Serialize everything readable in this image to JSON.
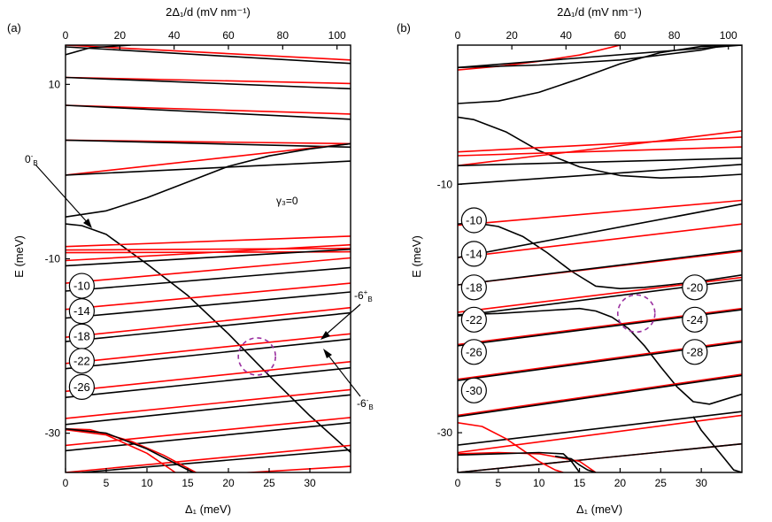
{
  "figure": {
    "panels": [
      {
        "id": "a",
        "panel_label": "(a)",
        "top_axis_label": "2Δ₁/d (mV nm⁻¹)",
        "bottom_axis_label": "Δ₁ (meV)",
        "left_axis_label": "E (meV)",
        "annotation": "γ₃=0"
      },
      {
        "id": "b",
        "panel_label": "(b)",
        "top_axis_label": "2Δ₁/d (mV nm⁻¹)",
        "bottom_axis_label": "Δ₁ (meV)",
        "left_axis_label": "E (meV)",
        "annotation": ""
      }
    ]
  },
  "chart_data": [
    {
      "type": "line",
      "panel": "(a)",
      "xlabel": "Δ₁ (meV)",
      "ylabel": "E (meV)",
      "x2label": "2Δ₁/d (mV nm⁻¹)",
      "xlim": [
        0,
        35
      ],
      "ylim": [
        -34.5,
        14.5
      ],
      "x2lim": [
        0,
        105
      ],
      "xticks": [
        0,
        5,
        10,
        15,
        20,
        25,
        30
      ],
      "x2ticks": [
        0,
        20,
        40,
        60,
        80,
        100
      ],
      "yticks": [
        10,
        -10,
        -30
      ],
      "colors": {
        "black_series": "#000000",
        "red_series": "#ff0000",
        "highlight": "#9b30a0"
      },
      "series": [
        {
          "color": "red",
          "x": [
            0,
            35
          ],
          "y": [
            14.5,
            12.8
          ]
        },
        {
          "color": "black",
          "x": [
            0,
            3,
            8
          ],
          "y": [
            13.4,
            14.2,
            14.5
          ]
        },
        {
          "color": "black",
          "x": [
            0,
            35
          ],
          "y": [
            14.3,
            12.4
          ]
        },
        {
          "color": "red",
          "x": [
            0,
            35
          ],
          "y": [
            10.8,
            10.1
          ]
        },
        {
          "color": "black",
          "x": [
            0,
            35
          ],
          "y": [
            10.8,
            9.5
          ]
        },
        {
          "color": "red",
          "x": [
            0,
            35
          ],
          "y": [
            7.6,
            6.6
          ]
        },
        {
          "color": "black",
          "x": [
            0,
            35
          ],
          "y": [
            7.6,
            6.0
          ]
        },
        {
          "color": "red",
          "x": [
            0,
            35
          ],
          "y": [
            3.6,
            3.2
          ]
        },
        {
          "color": "black",
          "x": [
            0,
            35
          ],
          "y": [
            3.6,
            2.8
          ]
        },
        {
          "color": "red",
          "x": [
            0,
            35
          ],
          "y": [
            -0.4,
            3.2
          ]
        },
        {
          "color": "black",
          "x": [
            0,
            35
          ],
          "y": [
            -0.4,
            1.2
          ]
        },
        {
          "color": "black",
          "x": [
            0,
            5,
            10,
            15,
            20,
            25,
            30,
            35
          ],
          "y": [
            -5.2,
            -4.5,
            -3.0,
            -1.2,
            0.6,
            1.8,
            2.6,
            3.2
          ]
        },
        {
          "color": "black",
          "label": "0⁻B",
          "x": [
            0,
            2,
            5,
            10,
            15,
            20,
            25,
            30,
            35
          ],
          "y": [
            -6.0,
            -6.2,
            -7.2,
            -10.6,
            -14.2,
            -18.6,
            -23.4,
            -28.0,
            -32.2
          ]
        },
        {
          "color": "red",
          "x": [
            0,
            35
          ],
          "y": [
            -8.6,
            -7.4
          ]
        },
        {
          "color": "red",
          "x": [
            0,
            35
          ],
          "y": [
            -9.0,
            -8.8
          ]
        },
        {
          "color": "red",
          "x": [
            0,
            35
          ],
          "y": [
            -9.3,
            -9.2
          ]
        },
        {
          "color": "red",
          "x": [
            0,
            35
          ],
          "y": [
            -10.2,
            -8.4
          ]
        },
        {
          "color": "black",
          "x": [
            0,
            35
          ],
          "y": [
            -10.8,
            -8.9
          ]
        },
        {
          "color": "red",
          "x": [
            0,
            35
          ],
          "y": [
            -12.8,
            -9.9
          ]
        },
        {
          "color": "black",
          "x": [
            0,
            35
          ],
          "y": [
            -13.7,
            -11.0
          ]
        },
        {
          "color": "red",
          "x": [
            0,
            35
          ],
          "y": [
            -15.8,
            -12.8
          ]
        },
        {
          "color": "black",
          "x": [
            0,
            35
          ],
          "y": [
            -16.8,
            -13.8
          ]
        },
        {
          "color": "red",
          "x": [
            0,
            35
          ],
          "y": [
            -19.0,
            -15.6
          ]
        },
        {
          "color": "black",
          "x": [
            0,
            35
          ],
          "y": [
            -19.5,
            -16.2
          ]
        },
        {
          "color": "red",
          "label": "-6⁺B",
          "x": [
            0,
            35
          ],
          "y": [
            -22.0,
            -18.6
          ]
        },
        {
          "color": "black",
          "label": "-6⁻B",
          "x": [
            0,
            35
          ],
          "y": [
            -22.6,
            -19.2
          ]
        },
        {
          "color": "red",
          "x": [
            0,
            35
          ],
          "y": [
            -25.2,
            -21.8
          ]
        },
        {
          "color": "black",
          "x": [
            0,
            35
          ],
          "y": [
            -25.9,
            -22.5
          ]
        },
        {
          "color": "red",
          "x": [
            0,
            35
          ],
          "y": [
            -28.3,
            -25.0
          ]
        },
        {
          "color": "black",
          "x": [
            0,
            35
          ],
          "y": [
            -29.0,
            -25.6
          ]
        },
        {
          "color": "red",
          "x": [
            0,
            35
          ],
          "y": [
            -31.4,
            -28.2
          ]
        },
        {
          "color": "black",
          "x": [
            0,
            35
          ],
          "y": [
            -32.0,
            -28.8
          ]
        },
        {
          "color": "red",
          "x": [
            0,
            35
          ],
          "y": [
            -34.5,
            -31.4
          ]
        },
        {
          "color": "black",
          "x": [
            2,
            35
          ],
          "y": [
            -34.5,
            -31.9
          ]
        },
        {
          "color": "red",
          "x": [
            0,
            35
          ],
          "y": [
            -35.8,
            -33.8
          ]
        },
        {
          "color": "red",
          "x": [
            0,
            3,
            8,
            12,
            16,
            18
          ],
          "y": [
            -29.5,
            -29.6,
            -30.9,
            -32.5,
            -34.5,
            -35.5
          ]
        },
        {
          "color": "red",
          "x": [
            0,
            5,
            10,
            13,
            15
          ],
          "y": [
            -29.6,
            -30.2,
            -32.3,
            -34.2,
            -35.5
          ]
        },
        {
          "color": "black",
          "x": [
            0,
            5,
            10,
            15,
            18
          ],
          "y": [
            -29.5,
            -30.0,
            -31.8,
            -34.2,
            -35.5
          ]
        }
      ],
      "state_labels": [
        "-10",
        "-14",
        "-18",
        "-22",
        "-26"
      ],
      "state_label_y": [
        -13.1,
        -16.0,
        -18.9,
        -21.7,
        -24.7
      ],
      "arrow_labels": [
        "0⁻B",
        "-6⁺B",
        "-6⁻B"
      ],
      "highlight": {
        "center": [
          23.5,
          -21.2
        ],
        "note": "dashed circle"
      }
    },
    {
      "type": "line",
      "panel": "(b)",
      "xlabel": "Δ₁ (meV)",
      "ylabel": "E (meV)",
      "x2label": "2Δ₁/d (mV nm⁻¹)",
      "xlim": [
        0,
        35
      ],
      "ylim": [
        -33.2,
        1.2
      ],
      "x2lim": [
        0,
        105
      ],
      "xticks": [
        0,
        5,
        10,
        15,
        20,
        25,
        30
      ],
      "x2ticks": [
        0,
        20,
        40,
        60,
        80,
        100
      ],
      "yticks": [
        -10,
        -30
      ],
      "colors": {
        "black_series": "#000000",
        "red_series": "#ff0000",
        "highlight": "#9b30a0"
      },
      "series": [
        {
          "color": "red",
          "x": [
            0,
            5,
            10,
            15,
            20
          ],
          "y": [
            -0.8,
            -0.5,
            -0.1,
            0.4,
            1.2
          ]
        },
        {
          "color": "black",
          "x": [
            0,
            10,
            20,
            30,
            33,
            35
          ],
          "y": [
            -0.6,
            -0.4,
            0.0,
            0.8,
            1.2,
            1.2
          ]
        },
        {
          "color": "black",
          "x": [
            0,
            35
          ],
          "y": [
            -0.6,
            1.2
          ]
        },
        {
          "color": "black",
          "x": [
            0,
            5,
            10,
            15,
            20,
            25,
            30,
            35
          ],
          "y": [
            -3.5,
            -3.3,
            -2.6,
            -1.5,
            -0.3,
            0.6,
            1.1,
            1.2
          ]
        },
        {
          "color": "black",
          "x": [
            0,
            2,
            6,
            10,
            15,
            20,
            25,
            30,
            35
          ],
          "y": [
            -4.6,
            -4.8,
            -5.8,
            -7.3,
            -8.6,
            -9.3,
            -9.5,
            -9.4,
            -9.2
          ]
        },
        {
          "color": "red",
          "x": [
            0,
            35
          ],
          "y": [
            -7.4,
            -6.2
          ]
        },
        {
          "color": "red",
          "x": [
            0,
            35
          ],
          "y": [
            -7.7,
            -7.0
          ]
        },
        {
          "color": "red",
          "x": [
            0,
            35
          ],
          "y": [
            -8.5,
            -5.7
          ]
        },
        {
          "color": "black",
          "x": [
            0,
            35
          ],
          "y": [
            -8.5,
            -7.9
          ]
        },
        {
          "color": "black",
          "x": [
            0,
            35
          ],
          "y": [
            -10.0,
            -8.4
          ]
        },
        {
          "color": "red",
          "x": [
            0,
            35
          ],
          "y": [
            -13.3,
            -11.3
          ]
        },
        {
          "color": "black",
          "x": [
            0,
            2,
            5,
            8,
            11,
            14,
            17,
            20,
            23,
            26,
            30,
            35
          ],
          "y": [
            -13.2,
            -13.1,
            -13.4,
            -14.2,
            -15.5,
            -17.0,
            -18.2,
            -18.4,
            -18.3,
            -18.1,
            -17.8,
            -17.3
          ]
        },
        {
          "color": "red",
          "x": [
            0,
            35
          ],
          "y": [
            -15.9,
            -13.2
          ]
        },
        {
          "color": "black",
          "x": [
            0,
            35
          ],
          "y": [
            -15.9,
            -11.6
          ]
        },
        {
          "color": "red",
          "x": [
            0,
            35
          ],
          "y": [
            -18.1,
            -15.4
          ]
        },
        {
          "color": "black",
          "x": [
            0,
            35
          ],
          "y": [
            -18.1,
            -15.3
          ]
        },
        {
          "color": "red",
          "x": [
            0,
            35
          ],
          "y": [
            -20.3,
            -17.5
          ]
        },
        {
          "color": "black",
          "x": [
            0,
            5,
            10,
            15,
            17,
            19,
            21,
            23,
            25,
            27,
            29,
            31,
            35
          ],
          "y": [
            -20.5,
            -20.4,
            -20.2,
            -20.0,
            -20.2,
            -20.7,
            -21.6,
            -23.0,
            -24.7,
            -26.3,
            -27.5,
            -27.7,
            -26.9
          ]
        },
        {
          "color": "black",
          "x": [
            0,
            35
          ],
          "y": [
            -20.6,
            -17.7
          ]
        },
        {
          "color": "red",
          "x": [
            0,
            35
          ],
          "y": [
            -22.9,
            -20.0
          ]
        },
        {
          "color": "black",
          "x": [
            0,
            35
          ],
          "y": [
            -23.0,
            -20.1
          ]
        },
        {
          "color": "red",
          "x": [
            0,
            35
          ],
          "y": [
            -25.7,
            -22.6
          ]
        },
        {
          "color": "black",
          "x": [
            0,
            35
          ],
          "y": [
            -25.8,
            -22.7
          ]
        },
        {
          "color": "red",
          "x": [
            0,
            35
          ],
          "y": [
            -28.6,
            -25.3
          ]
        },
        {
          "color": "black",
          "x": [
            0,
            35
          ],
          "y": [
            -28.7,
            -25.4
          ]
        },
        {
          "color": "black",
          "x": [
            0,
            35
          ],
          "y": [
            -31.0,
            -28.3
          ]
        },
        {
          "color": "red",
          "x": [
            0,
            35
          ],
          "y": [
            -31.6,
            -28.6
          ]
        },
        {
          "color": "red",
          "x": [
            0,
            35
          ],
          "y": [
            -33.2,
            -30.9
          ]
        },
        {
          "color": "black",
          "x": [
            0,
            35
          ],
          "y": [
            -33.2,
            -30.9
          ]
        },
        {
          "color": "red",
          "x": [
            0,
            3,
            6,
            8,
            10,
            12,
            13
          ],
          "y": [
            -29.2,
            -29.5,
            -30.5,
            -31.4,
            -32.3,
            -33.0,
            -33.2
          ]
        },
        {
          "color": "red",
          "x": [
            0,
            5,
            10,
            15,
            17
          ],
          "y": [
            -31.7,
            -31.6,
            -31.7,
            -32.3,
            -33.2
          ]
        },
        {
          "color": "black",
          "x": [
            0,
            5,
            10,
            13,
            14,
            15
          ],
          "y": [
            -31.8,
            -31.7,
            -31.6,
            -31.7,
            -32.3,
            -33.2
          ]
        },
        {
          "color": "black",
          "x": [
            12,
            14,
            15,
            16,
            17
          ],
          "y": [
            -31.9,
            -32.1,
            -32.6,
            -33.0,
            -33.2
          ]
        },
        {
          "color": "black",
          "x": [
            29,
            30,
            31,
            32,
            33,
            34,
            35
          ],
          "y": [
            -28.7,
            -29.8,
            -30.6,
            -31.4,
            -32.2,
            -33.0,
            -33.2
          ]
        }
      ],
      "state_labels": [
        "-10",
        "-14",
        "-18",
        "-22",
        "-26",
        "-30"
      ],
      "state_label_y": [
        -12.9,
        -15.6,
        -18.3,
        -20.9,
        -23.5,
        -26.6
      ],
      "state_labels_right": [
        "-20",
        "-24",
        "-28"
      ],
      "state_label_right_y": [
        -18.3,
        -20.9,
        -23.5
      ],
      "highlight": {
        "center": [
          22.0,
          -20.4
        ],
        "note": "dashed circle"
      }
    }
  ]
}
